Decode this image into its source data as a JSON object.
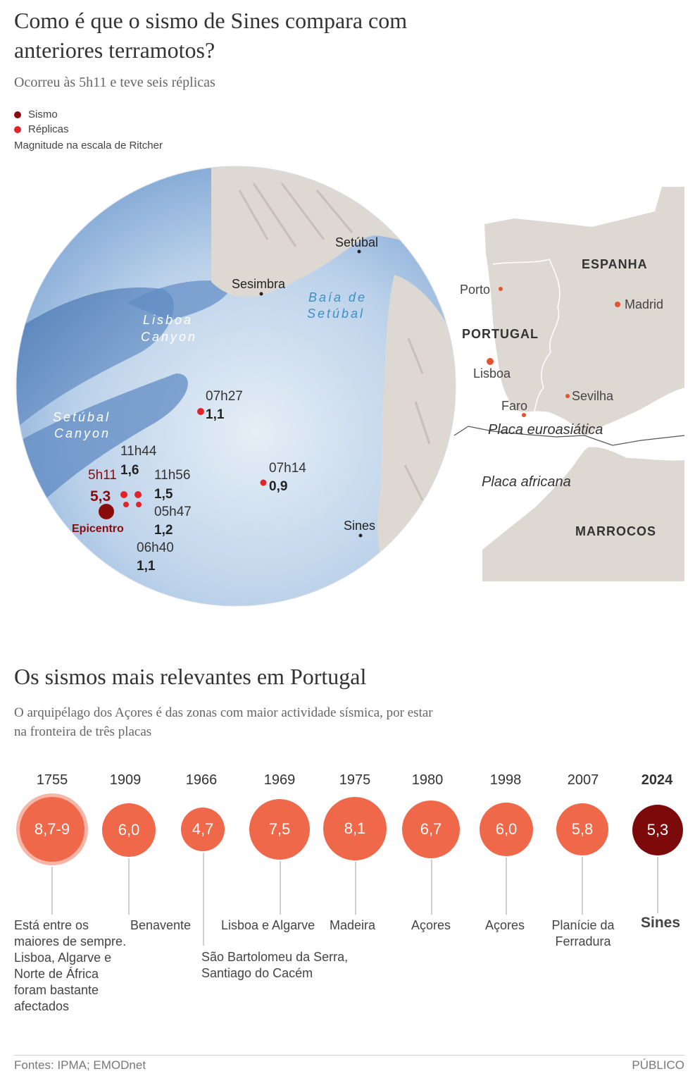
{
  "header": {
    "title": "Como é que o sismo de Sines compara com anteriores terramotos?",
    "subtitle": "Ocorreu às 5h11 e teve seis réplicas"
  },
  "legend": {
    "items": [
      {
        "label": "Sismo",
        "color": "#8b0a0a"
      },
      {
        "label": "Réplicas",
        "color": "#e2232a"
      }
    ],
    "note": "Magnitude na escala de Ritcher"
  },
  "detail_map": {
    "places": {
      "setubal": "Setúbal",
      "sesimbra": "Sesimbra",
      "sines": "Sines"
    },
    "water_labels": {
      "baia_line1": "Baía de",
      "baia_line2": "Setúbal",
      "lisboa_canyon_line1": "Lisboa",
      "lisboa_canyon_line2": "Canyon",
      "setubal_canyon_line1": "Setúbal",
      "setubal_canyon_line2": "Canyon"
    },
    "main_quake": {
      "time": "5h11",
      "magnitude": "5,3",
      "label": "Epicentro"
    },
    "aftershocks": [
      {
        "time": "07h27",
        "magnitude": "1,1"
      },
      {
        "time": "11h44",
        "magnitude": "1,6"
      },
      {
        "time": "11h56",
        "magnitude": "1,5"
      },
      {
        "time": "05h47",
        "magnitude": "1,2"
      },
      {
        "time": "06h40",
        "magnitude": "1,1"
      },
      {
        "time": "07h14",
        "magnitude": "0,9"
      }
    ]
  },
  "overview_map": {
    "countries": {
      "spain": "ESPANHA",
      "portugal": "PORTUGAL",
      "morocco": "MARROCOS"
    },
    "cities": {
      "porto": "Porto",
      "madrid": "Madrid",
      "lisboa": "Lisboa",
      "sevilha": "Sevilha",
      "faro": "Faro"
    },
    "plates": {
      "eurasian": "Placa euroasiática",
      "african": "Placa africana"
    }
  },
  "section2": {
    "title": "Os sismos mais relevantes em Portugal",
    "subtitle": "O arquipélago dos Açores é das zonas com maior actividade sísmica, por estar na fronteira de três placas"
  },
  "timeline": [
    {
      "year": "1755",
      "magnitude": "8,7-9",
      "label": "Está entre os maiores de sempre. Lisboa, Algarve e Norte de África foram bastante afectados"
    },
    {
      "year": "1909",
      "magnitude": "6,0",
      "label": "Benavente"
    },
    {
      "year": "1966",
      "magnitude": "4,7",
      "label": "São Bartolomeu da Serra, Santiago do Cacém"
    },
    {
      "year": "1969",
      "magnitude": "7,5",
      "label": "Lisboa e Algarve"
    },
    {
      "year": "1975",
      "magnitude": "8,1",
      "label": "Madeira"
    },
    {
      "year": "1980",
      "magnitude": "6,7",
      "label": "Açores"
    },
    {
      "year": "1998",
      "magnitude": "6,0",
      "label": "Açores"
    },
    {
      "year": "2007",
      "magnitude": "5,8",
      "label": "Planície da Ferradura"
    },
    {
      "year": "2024",
      "magnitude": "5,3",
      "label": "Sines"
    }
  ],
  "colors": {
    "bubble": "#f0684a",
    "highlight": "#7c0a0a",
    "land": "#ddd8d2",
    "sea_light": "#e4ecf4",
    "sea_deep": "#6f9bd0"
  },
  "footer": {
    "sources": "Fontes: IPMA; EMODnet",
    "brand": "PÚBLICO"
  }
}
